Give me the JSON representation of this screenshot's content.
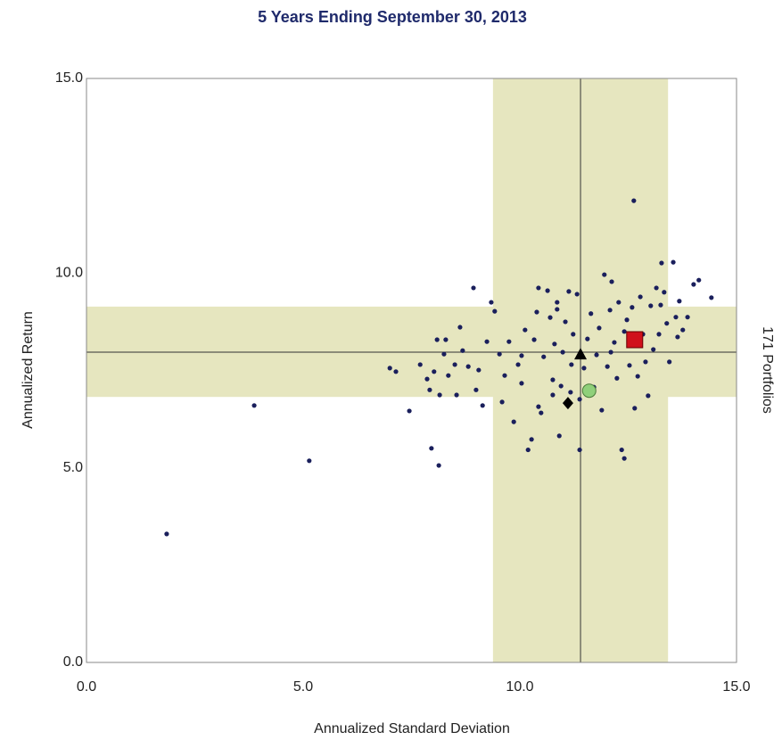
{
  "chart_data": {
    "type": "scatter",
    "title": "5 Years Ending September 30, 2013",
    "x_label": "Annualized Standard Deviation",
    "y_label": "Annualized Return",
    "right_label": "171 Portfolios",
    "xlim": [
      0,
      15
    ],
    "ylim": [
      0,
      15
    ],
    "xticks": [
      {
        "value": 0,
        "label": "0.0"
      },
      {
        "value": 5,
        "label": "5.0"
      },
      {
        "value": 10,
        "label": "10.0"
      },
      {
        "value": 15,
        "label": "15.0"
      }
    ],
    "yticks": [
      {
        "value": 0,
        "label": "0.0"
      },
      {
        "value": 5,
        "label": "5.0"
      },
      {
        "value": 10,
        "label": "10.0"
      },
      {
        "value": 15,
        "label": "15.0"
      }
    ],
    "x_band": [
      9.38,
      13.42
    ],
    "y_band": [
      6.82,
      9.14
    ],
    "band_color": "#e6e6bf",
    "x_median": 11.4,
    "y_median": 7.97,
    "series": [
      {
        "color": "#1a1f5c",
        "marker": "circle",
        "x": [
          1.85,
          3.87,
          5.14,
          12.63,
          7.96,
          8.13,
          7.0,
          7.14,
          7.45,
          7.7,
          7.86,
          7.92,
          8.02,
          8.09,
          8.15,
          8.25,
          8.29,
          8.35,
          8.5,
          8.54,
          8.62,
          8.68,
          8.81,
          8.93,
          8.99,
          9.05,
          9.14,
          9.24,
          9.34,
          9.42,
          9.53,
          9.59,
          9.65,
          9.75,
          9.86,
          9.96,
          10.04,
          10.12,
          10.19,
          10.27,
          10.33,
          10.39,
          10.43,
          10.49,
          10.55,
          10.64,
          10.7,
          10.76,
          10.8,
          10.86,
          10.91,
          10.95,
          10.99,
          11.05,
          11.13,
          11.19,
          11.23,
          11.32,
          11.38,
          11.48,
          11.56,
          11.64,
          11.71,
          11.77,
          11.83,
          11.89,
          11.95,
          12.02,
          12.08,
          12.12,
          12.18,
          12.24,
          12.28,
          12.35,
          12.41,
          12.47,
          12.53,
          12.59,
          12.65,
          12.72,
          12.78,
          12.84,
          12.9,
          12.96,
          13.02,
          13.08,
          13.15,
          13.21,
          13.27,
          13.33,
          13.39,
          13.45,
          13.54,
          13.6,
          13.68,
          13.76,
          13.87,
          14.01,
          14.13,
          14.42,
          13.64,
          13.25,
          10.76,
          10.43,
          11.17,
          10.86,
          11.38,
          12.1,
          12.41,
          10.04
        ],
        "y": [
          3.3,
          6.6,
          5.18,
          11.86,
          5.5,
          5.06,
          7.56,
          7.47,
          6.46,
          7.65,
          7.28,
          7.0,
          7.47,
          8.29,
          6.87,
          7.92,
          8.29,
          7.37,
          7.65,
          6.87,
          8.61,
          8.01,
          7.6,
          9.62,
          7.0,
          7.51,
          6.6,
          8.24,
          9.25,
          9.02,
          7.92,
          6.69,
          7.37,
          8.24,
          6.18,
          7.65,
          7.88,
          8.54,
          5.46,
          5.73,
          8.29,
          9.0,
          9.62,
          6.41,
          7.85,
          9.55,
          8.86,
          7.26,
          8.18,
          9.25,
          5.82,
          7.1,
          7.97,
          8.75,
          9.53,
          7.65,
          8.43,
          9.46,
          5.46,
          7.56,
          8.31,
          8.96,
          7.07,
          7.9,
          8.59,
          6.48,
          9.96,
          7.6,
          9.05,
          9.78,
          8.22,
          7.3,
          9.25,
          5.46,
          5.24,
          8.8,
          7.63,
          9.12,
          6.53,
          7.35,
          9.39,
          8.43,
          7.72,
          6.85,
          9.16,
          8.04,
          9.62,
          8.43,
          10.26,
          9.51,
          8.71,
          7.72,
          10.28,
          8.87,
          9.28,
          8.54,
          8.87,
          9.71,
          9.82,
          9.37,
          8.36,
          9.18,
          6.87,
          6.57,
          6.94,
          9.07,
          6.76,
          7.97,
          8.5,
          7.17
        ]
      },
      {
        "color": "#d0111b",
        "marker": "square",
        "x": [
          12.65
        ],
        "y": [
          8.29
        ]
      },
      {
        "color": "#8fd07a",
        "marker": "circle-large",
        "x": [
          11.6
        ],
        "y": [
          6.98
        ]
      },
      {
        "color": "#000000",
        "marker": "triangle",
        "x": [
          11.4
        ],
        "y": [
          7.92
        ]
      },
      {
        "color": "#000000",
        "marker": "diamond",
        "x": [
          11.11
        ],
        "y": [
          6.66
        ]
      }
    ]
  }
}
